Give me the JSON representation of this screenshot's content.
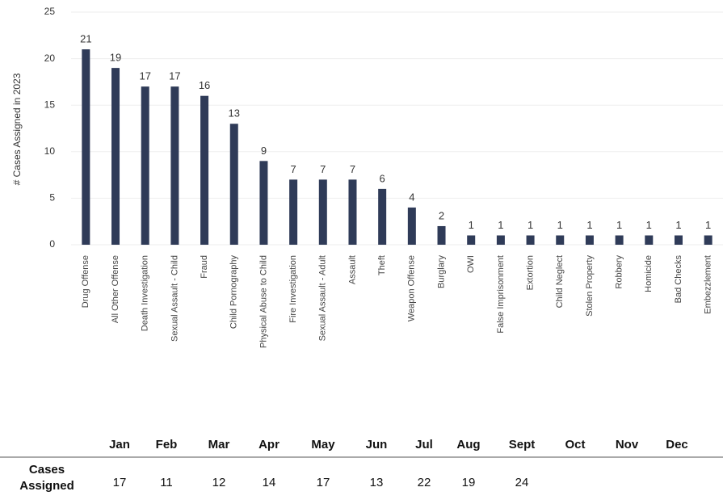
{
  "chart_data": {
    "type": "bar",
    "ylabel": "# Cases Assigned in 2023",
    "categories": [
      "Drug Offense",
      "All Other Offense",
      "Death Investigation",
      "Sexual Assault - Child",
      "Fraud",
      "Child Pornography",
      "Physical Abuse to Child",
      "Fire Investigation",
      "Sexual Assault - Adult",
      "Assault",
      "Theft",
      "Weapon Offense",
      "Burglary",
      "OWI",
      "False Imprisonment",
      "Extortion",
      "Child Neglect",
      "Stolen Property",
      "Robbery",
      "Homicide",
      "Bad Checks",
      "Embezzlement"
    ],
    "values": [
      21,
      19,
      17,
      17,
      16,
      13,
      9,
      7,
      7,
      7,
      6,
      4,
      2,
      1,
      1,
      1,
      1,
      1,
      1,
      1,
      1,
      1
    ],
    "color": "#2f3b58",
    "ylim": [
      0,
      25
    ],
    "yticks": [
      0,
      5,
      10,
      15,
      20,
      25
    ],
    "grid": true
  },
  "table": {
    "row_label": "Cases Assigned",
    "columns": [
      "Jan",
      "Feb",
      "Mar",
      "Apr",
      "May",
      "Jun",
      "Jul",
      "Aug",
      "Sept",
      "Oct",
      "Nov",
      "Dec"
    ],
    "values": [
      17,
      11,
      12,
      14,
      17,
      13,
      22,
      19,
      24,
      null,
      null,
      null
    ]
  }
}
